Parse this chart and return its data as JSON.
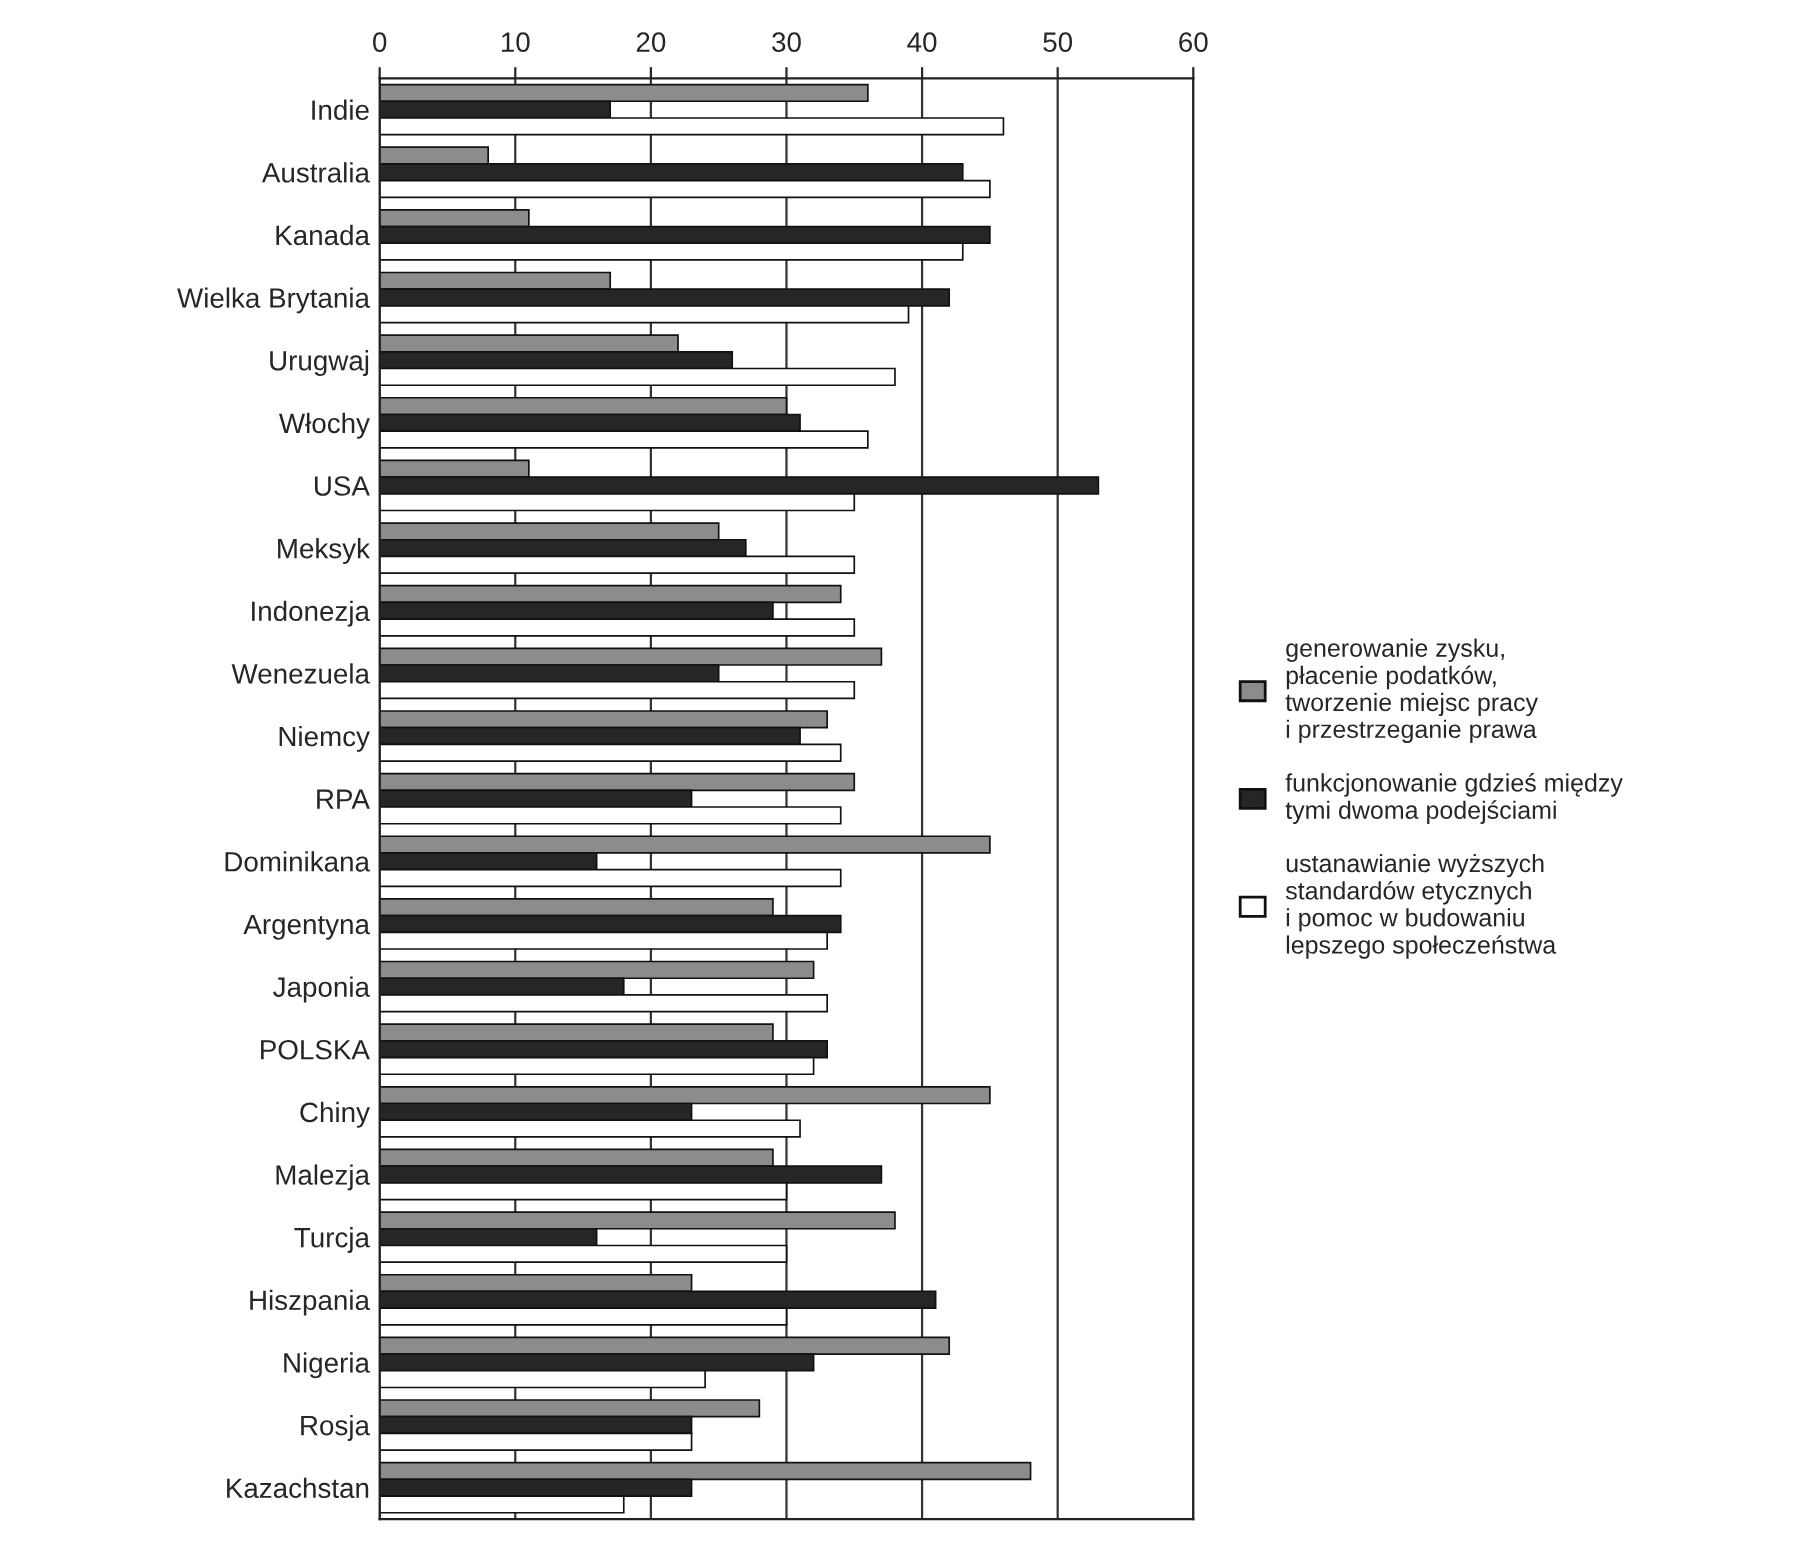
{
  "chart_data": {
    "type": "bar",
    "orientation": "horizontal",
    "categories": [
      "Indie",
      "Australia",
      "Kanada",
      "Wielka Brytania",
      "Urugwaj",
      "Włochy",
      "USA",
      "Meksyk",
      "Indonezja",
      "Wenezuela",
      "Niemcy",
      "RPA",
      "Dominikana",
      "Argentyna",
      "Japonia",
      "POLSKA",
      "Chiny",
      "Malezja",
      "Turcja",
      "Hiszpania",
      "Nigeria",
      "Rosja",
      "Kazachstan"
    ],
    "series": [
      {
        "name": "generowanie zysku,\npłacenie podatków,\ntworzenie miejsc pracy\ni przestrzeganie prawa",
        "color": "#8c8c8c",
        "values": [
          36,
          8,
          11,
          17,
          22,
          30,
          11,
          25,
          34,
          37,
          33,
          35,
          45,
          29,
          32,
          29,
          45,
          29,
          38,
          23,
          42,
          28,
          48
        ]
      },
      {
        "name": "funkcjonowanie gdzieś między\ntymi dwoma podejściami",
        "color": "#262626",
        "values": [
          17,
          43,
          45,
          42,
          26,
          31,
          53,
          27,
          29,
          25,
          31,
          23,
          16,
          34,
          18,
          33,
          23,
          37,
          16,
          41,
          32,
          23,
          23
        ]
      },
      {
        "name": "ustanawianie wyższych\nstandardów etycznych\ni pomoc w budowaniu\nlepszego społeczeństwa",
        "color": "#ffffff",
        "values": [
          46,
          45,
          43,
          39,
          38,
          36,
          35,
          35,
          35,
          35,
          34,
          34,
          34,
          33,
          33,
          32,
          31,
          30,
          30,
          30,
          24,
          23,
          18
        ]
      }
    ],
    "xlim": [
      0,
      60
    ],
    "xticks": [
      0,
      10,
      20,
      30,
      40,
      50,
      60
    ],
    "grid": "x",
    "legend": "right"
  }
}
